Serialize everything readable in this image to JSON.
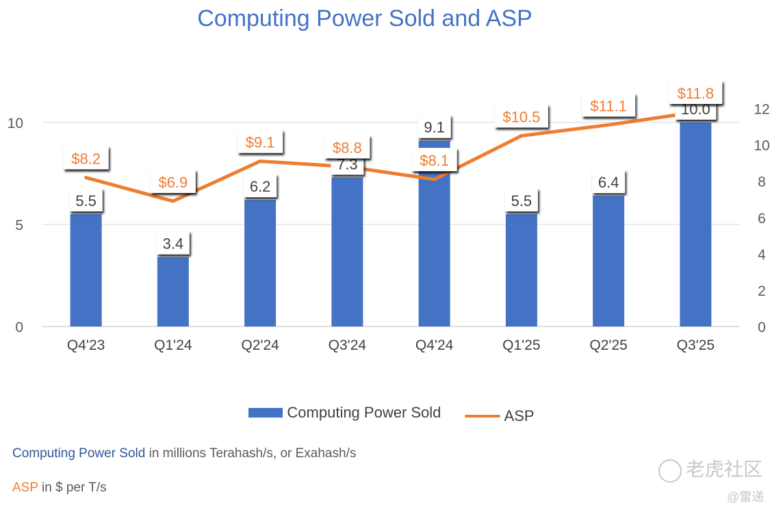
{
  "chart_data": {
    "title": "Computing Power Sold and ASP",
    "type": "bar+line",
    "categories": [
      "Q4'23",
      "Q1'24",
      "Q2'24",
      "Q3'24",
      "Q4'24",
      "Q1'25",
      "Q2'25",
      "Q3'25"
    ],
    "series": [
      {
        "name": "Computing Power Sold",
        "type": "bar",
        "axis": "left",
        "values": [
          5.5,
          3.4,
          6.2,
          7.3,
          9.1,
          5.5,
          6.4,
          10.0
        ],
        "labels": [
          "5.5",
          "3.4",
          "6.2",
          "7.3",
          "9.1",
          "5.5",
          "6.4",
          "10.0"
        ],
        "color": "#4472c4"
      },
      {
        "name": "ASP",
        "type": "line",
        "axis": "right",
        "values": [
          8.2,
          6.9,
          9.1,
          8.8,
          8.1,
          10.5,
          11.1,
          11.8
        ],
        "labels": [
          "$8.2",
          "$6.9",
          "$9.1",
          "$8.8",
          "$8.1",
          "$10.5",
          "$11.1",
          "$11.8"
        ],
        "color": "#ed7d31"
      }
    ],
    "y_left": {
      "ticks": [
        0,
        5,
        10
      ]
    },
    "y_right": {
      "ticks": [
        0,
        2,
        4,
        6,
        8,
        10,
        12
      ]
    },
    "grid": true,
    "legend_position": "bottom"
  },
  "notes": {
    "cps_term": "Computing Power Sold",
    "cps_desc": " in millions Terahash/s, or Exahash/s",
    "asp_term": "ASP",
    "asp_desc": " in $ per T/s"
  },
  "watermark": {
    "text": "老虎社区",
    "handle": "@雷递"
  }
}
